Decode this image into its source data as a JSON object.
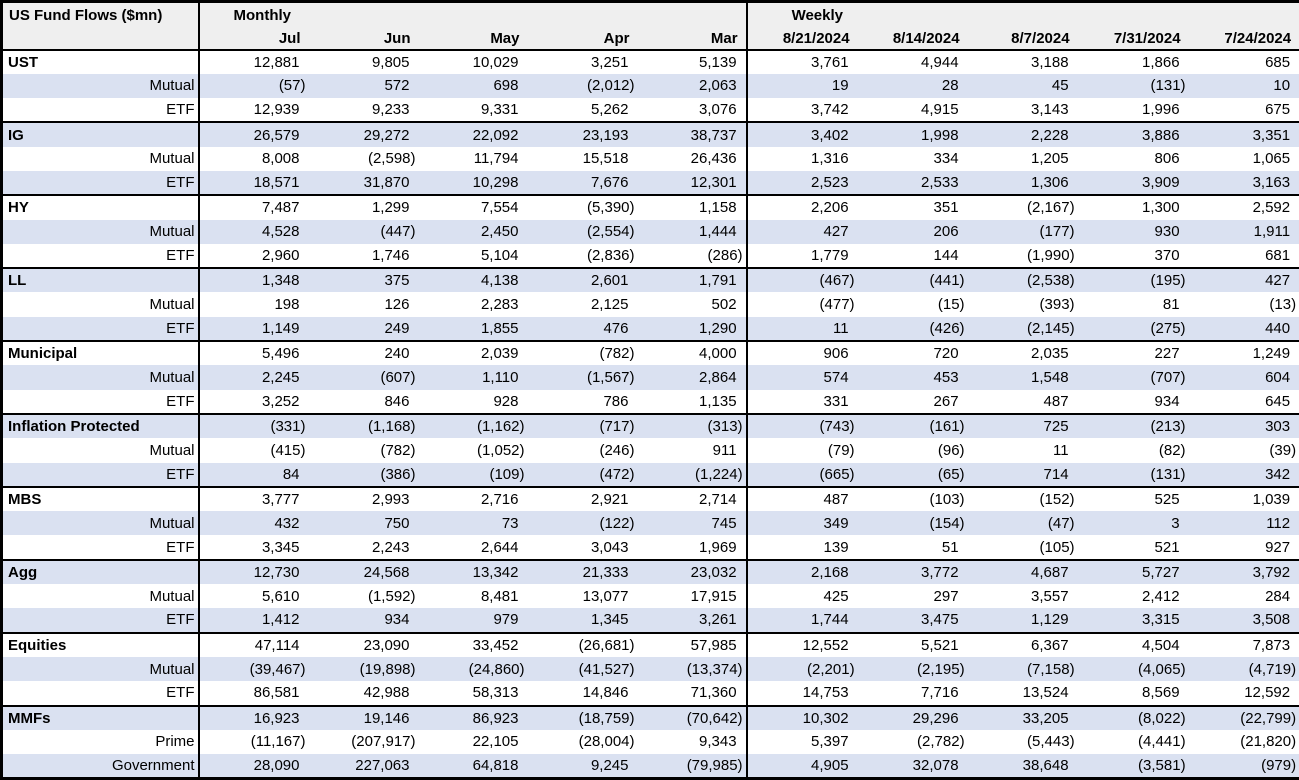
{
  "chart_data": {
    "type": "table",
    "title": "US Fund Flows ($mn)",
    "colors": {
      "stripe": "#DAE1F1",
      "header_bg": "#EFEFEF",
      "border": "#000000"
    },
    "sections": [
      {
        "label": "Monthly",
        "columns": [
          "Jul",
          "Jun",
          "May",
          "Apr",
          "Mar"
        ]
      },
      {
        "label": "Weekly",
        "columns": [
          "8/21/2024",
          "8/14/2024",
          "8/7/2024",
          "7/31/2024",
          "7/24/2024"
        ]
      }
    ],
    "groups": [
      {
        "rows": [
          {
            "label": "UST",
            "bold": true,
            "monthly": [
              "12,881",
              "9,805",
              "10,029",
              "3,251",
              "5,139"
            ],
            "weekly": [
              "3,761",
              "4,944",
              "3,188",
              "1,866",
              "685"
            ]
          },
          {
            "label": "Mutual",
            "bold": false,
            "monthly": [
              "(57)",
              "572",
              "698",
              "(2,012)",
              "2,063"
            ],
            "weekly": [
              "19",
              "28",
              "45",
              "(131)",
              "10"
            ]
          },
          {
            "label": "ETF",
            "bold": false,
            "monthly": [
              "12,939",
              "9,233",
              "9,331",
              "5,262",
              "3,076"
            ],
            "weekly": [
              "3,742",
              "4,915",
              "3,143",
              "1,996",
              "675"
            ]
          }
        ]
      },
      {
        "rows": [
          {
            "label": "IG",
            "bold": true,
            "monthly": [
              "26,579",
              "29,272",
              "22,092",
              "23,193",
              "38,737"
            ],
            "weekly": [
              "3,402",
              "1,998",
              "2,228",
              "3,886",
              "3,351"
            ]
          },
          {
            "label": "Mutual",
            "bold": false,
            "monthly": [
              "8,008",
              "(2,598)",
              "11,794",
              "15,518",
              "26,436"
            ],
            "weekly": [
              "1,316",
              "334",
              "1,205",
              "806",
              "1,065"
            ]
          },
          {
            "label": "ETF",
            "bold": false,
            "monthly": [
              "18,571",
              "31,870",
              "10,298",
              "7,676",
              "12,301"
            ],
            "weekly": [
              "2,523",
              "2,533",
              "1,306",
              "3,909",
              "3,163"
            ]
          }
        ]
      },
      {
        "rows": [
          {
            "label": "HY",
            "bold": true,
            "monthly": [
              "7,487",
              "1,299",
              "7,554",
              "(5,390)",
              "1,158"
            ],
            "weekly": [
              "2,206",
              "351",
              "(2,167)",
              "1,300",
              "2,592"
            ]
          },
          {
            "label": "Mutual",
            "bold": false,
            "monthly": [
              "4,528",
              "(447)",
              "2,450",
              "(2,554)",
              "1,444"
            ],
            "weekly": [
              "427",
              "206",
              "(177)",
              "930",
              "1,911"
            ]
          },
          {
            "label": "ETF",
            "bold": false,
            "monthly": [
              "2,960",
              "1,746",
              "5,104",
              "(2,836)",
              "(286)"
            ],
            "weekly": [
              "1,779",
              "144",
              "(1,990)",
              "370",
              "681"
            ]
          }
        ]
      },
      {
        "rows": [
          {
            "label": "LL",
            "bold": true,
            "monthly": [
              "1,348",
              "375",
              "4,138",
              "2,601",
              "1,791"
            ],
            "weekly": [
              "(467)",
              "(441)",
              "(2,538)",
              "(195)",
              "427"
            ]
          },
          {
            "label": "Mutual",
            "bold": false,
            "monthly": [
              "198",
              "126",
              "2,283",
              "2,125",
              "502"
            ],
            "weekly": [
              "(477)",
              "(15)",
              "(393)",
              "81",
              "(13)"
            ]
          },
          {
            "label": "ETF",
            "bold": false,
            "monthly": [
              "1,149",
              "249",
              "1,855",
              "476",
              "1,290"
            ],
            "weekly": [
              "11",
              "(426)",
              "(2,145)",
              "(275)",
              "440"
            ]
          }
        ]
      },
      {
        "rows": [
          {
            "label": "Municipal",
            "bold": true,
            "monthly": [
              "5,496",
              "240",
              "2,039",
              "(782)",
              "4,000"
            ],
            "weekly": [
              "906",
              "720",
              "2,035",
              "227",
              "1,249"
            ]
          },
          {
            "label": "Mutual",
            "bold": false,
            "monthly": [
              "2,245",
              "(607)",
              "1,110",
              "(1,567)",
              "2,864"
            ],
            "weekly": [
              "574",
              "453",
              "1,548",
              "(707)",
              "604"
            ]
          },
          {
            "label": "ETF",
            "bold": false,
            "monthly": [
              "3,252",
              "846",
              "928",
              "786",
              "1,135"
            ],
            "weekly": [
              "331",
              "267",
              "487",
              "934",
              "645"
            ]
          }
        ]
      },
      {
        "rows": [
          {
            "label": "Inflation Protected",
            "bold": true,
            "monthly": [
              "(331)",
              "(1,168)",
              "(1,162)",
              "(717)",
              "(313)"
            ],
            "weekly": [
              "(743)",
              "(161)",
              "725",
              "(213)",
              "303"
            ]
          },
          {
            "label": "Mutual",
            "bold": false,
            "monthly": [
              "(415)",
              "(782)",
              "(1,052)",
              "(246)",
              "911"
            ],
            "weekly": [
              "(79)",
              "(96)",
              "11",
              "(82)",
              "(39)"
            ]
          },
          {
            "label": "ETF",
            "bold": false,
            "monthly": [
              "84",
              "(386)",
              "(109)",
              "(472)",
              "(1,224)"
            ],
            "weekly": [
              "(665)",
              "(65)",
              "714",
              "(131)",
              "342"
            ]
          }
        ]
      },
      {
        "rows": [
          {
            "label": "MBS",
            "bold": true,
            "monthly": [
              "3,777",
              "2,993",
              "2,716",
              "2,921",
              "2,714"
            ],
            "weekly": [
              "487",
              "(103)",
              "(152)",
              "525",
              "1,039"
            ]
          },
          {
            "label": "Mutual",
            "bold": false,
            "monthly": [
              "432",
              "750",
              "73",
              "(122)",
              "745"
            ],
            "weekly": [
              "349",
              "(154)",
              "(47)",
              "3",
              "112"
            ]
          },
          {
            "label": "ETF",
            "bold": false,
            "monthly": [
              "3,345",
              "2,243",
              "2,644",
              "3,043",
              "1,969"
            ],
            "weekly": [
              "139",
              "51",
              "(105)",
              "521",
              "927"
            ]
          }
        ]
      },
      {
        "rows": [
          {
            "label": "Agg",
            "bold": true,
            "monthly": [
              "12,730",
              "24,568",
              "13,342",
              "21,333",
              "23,032"
            ],
            "weekly": [
              "2,168",
              "3,772",
              "4,687",
              "5,727",
              "3,792"
            ]
          },
          {
            "label": "Mutual",
            "bold": false,
            "monthly": [
              "5,610",
              "(1,592)",
              "8,481",
              "13,077",
              "17,915"
            ],
            "weekly": [
              "425",
              "297",
              "3,557",
              "2,412",
              "284"
            ]
          },
          {
            "label": "ETF",
            "bold": false,
            "monthly": [
              "1,412",
              "934",
              "979",
              "1,345",
              "3,261"
            ],
            "weekly": [
              "1,744",
              "3,475",
              "1,129",
              "3,315",
              "3,508"
            ]
          }
        ]
      },
      {
        "rows": [
          {
            "label": "Equities",
            "bold": true,
            "monthly": [
              "47,114",
              "23,090",
              "33,452",
              "(26,681)",
              "57,985"
            ],
            "weekly": [
              "12,552",
              "5,521",
              "6,367",
              "4,504",
              "7,873"
            ]
          },
          {
            "label": "Mutual",
            "bold": false,
            "monthly": [
              "(39,467)",
              "(19,898)",
              "(24,860)",
              "(41,527)",
              "(13,374)"
            ],
            "weekly": [
              "(2,201)",
              "(2,195)",
              "(7,158)",
              "(4,065)",
              "(4,719)"
            ]
          },
          {
            "label": "ETF",
            "bold": false,
            "monthly": [
              "86,581",
              "42,988",
              "58,313",
              "14,846",
              "71,360"
            ],
            "weekly": [
              "14,753",
              "7,716",
              "13,524",
              "8,569",
              "12,592"
            ]
          }
        ]
      },
      {
        "rows": [
          {
            "label": "MMFs",
            "bold": true,
            "monthly": [
              "16,923",
              "19,146",
              "86,923",
              "(18,759)",
              "(70,642)"
            ],
            "weekly": [
              "10,302",
              "29,296",
              "33,205",
              "(8,022)",
              "(22,799)"
            ]
          },
          {
            "label": "Prime",
            "bold": false,
            "monthly": [
              "(11,167)",
              "(207,917)",
              "22,105",
              "(28,004)",
              "9,343"
            ],
            "weekly": [
              "5,397",
              "(2,782)",
              "(5,443)",
              "(4,441)",
              "(21,820)"
            ]
          },
          {
            "label": "Government",
            "bold": false,
            "monthly": [
              "28,090",
              "227,063",
              "64,818",
              "9,245",
              "(79,985)"
            ],
            "weekly": [
              "4,905",
              "32,078",
              "38,648",
              "(3,581)",
              "(979)"
            ]
          }
        ]
      }
    ]
  }
}
